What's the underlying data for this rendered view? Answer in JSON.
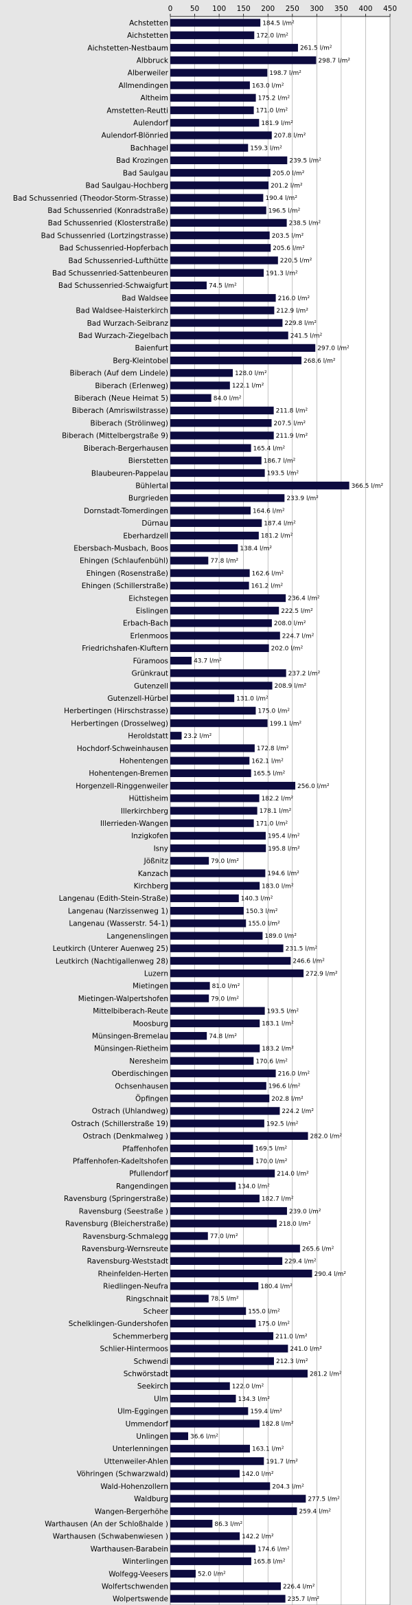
{
  "chart_data": {
    "type": "bar",
    "orientation": "horizontal",
    "title": "",
    "xlabel": "",
    "ylabel": "",
    "xlim": [
      0,
      450
    ],
    "x_ticks": [
      0,
      50,
      100,
      150,
      200,
      250,
      300,
      350,
      400,
      450
    ],
    "grid": "vertical",
    "axis_position": "top",
    "unit_suffix": " l/m²",
    "colors": {
      "bar": "#0d0b3f",
      "background": "#e6e6e6",
      "plot": "#ffffff",
      "grid": "#999999"
    },
    "categories": [
      "Achstetten",
      "Aichstetten",
      "Aichstetten-Nestbaum",
      "Albbruck",
      "Alberweiler",
      "Allmendingen",
      "Altheim",
      "Amstetten-Reutti",
      "Aulendorf",
      "Aulendorf-Blönried",
      "Bachhagel",
      "Bad Krozingen",
      "Bad Saulgau",
      "Bad Saulgau-Hochberg",
      "Bad Schussenried (Theodor-Storm-Strasse)",
      "Bad Schussenried (Konradstraße)",
      "Bad Schussenried (Klosterstraße)",
      "Bad Schussenried (Lortzingstrasse)",
      "Bad Schussenried-Hopferbach",
      "Bad Schussenried-Lufthütte",
      "Bad Schussenried-Sattenbeuren",
      "Bad Schussenried-Schwaigfurt",
      "Bad Waldsee",
      "Bad Waldsee-Haisterkirch",
      "Bad Wurzach-Seibranz",
      "Bad Wurzach-Ziegelbach",
      "Baienfurt",
      "Berg-Kleintobel",
      "Biberach (Auf dem Lindele)",
      "Biberach (Erlenweg)",
      "Biberach (Neue Heimat 5)",
      "Biberach (Amriswilstrasse)",
      "Biberach (Strölinweg)",
      "Biberach (Mittelbergstraße 9)",
      "Biberach-Bergerhausen",
      "Bierstetten",
      "Blaubeuren-Pappelau",
      "Bühlertal",
      "Burgrieden",
      "Dornstadt-Tomerdingen",
      "Dürnau",
      "Eberhardzell",
      "Ebersbach-Musbach, Boos",
      "Ehingen (Schlaufenbühl)",
      "Ehingen (Rosenstraße)",
      "Ehingen (Schillerstraße)",
      "Eichstegen",
      "Eislingen",
      "Erbach-Bach",
      "Erlenmoos",
      "Friedrichshafen-Kluftern",
      "Füramoos",
      "Grünkraut",
      "Gutenzell",
      "Gutenzell-Hürbel",
      "Herbertingen (Hirschstrasse)",
      "Herbertingen (Drosselweg)",
      "Heroldstatt",
      "Hochdorf-Schweinhausen",
      "Hohentengen",
      "Hohentengen-Bremen",
      "Horgenzell-Ringgenweiler",
      "Hüttisheim",
      "Illerkirchberg",
      "Illerrieden-Wangen",
      "Inzigkofen",
      "Isny",
      "Jößnitz",
      "Kanzach",
      "Kirchberg",
      "Langenau (Edith-Stein-Straße)",
      "Langenau (Narzissenweg 1)",
      "Langenau (Wasserstr. 54-1)",
      "Langenenslingen",
      "Leutkirch (Unterer Auenweg 25)",
      "Leutkirch (Nachtigallenweg 28)",
      "Luzern",
      "Mietingen",
      "Mietingen-Walpertshofen",
      "Mittelbiberach-Reute",
      "Moosburg",
      "Münsingen-Bremelau",
      "Münsingen-Rietheim",
      "Neresheim",
      "Oberdischingen",
      "Ochsenhausen",
      "Öpfingen",
      "Ostrach (Uhlandweg)",
      "Ostrach (Schillerstraße 19)",
      "Ostrach (Denkmalweg )",
      "Pfaffenhofen",
      "Pfaffenhofen-Kadeltshofen",
      "Pfullendorf",
      "Rangendingen",
      "Ravensburg (Springerstraße)",
      "Ravensburg (Seestraße )",
      "Ravensburg (Bleicherstraße)",
      "Ravensburg-Schmalegg",
      "Ravensburg-Wernsreute",
      "Ravensburg-Weststadt",
      "Rheinfelden-Herten",
      "Riedlingen-Neufra",
      "Ringschnait",
      "Scheer",
      "Schelklingen-Gundershofen",
      "Schemmerberg",
      "Schlier-Hintermoos",
      "Schwendi",
      "Schwörstadt",
      "Seekirch",
      "Ulm",
      "Ulm-Eggingen",
      "Ummendorf",
      "Unlingen",
      "Unterlenningen",
      "Uttenweiler-Ahlen",
      "Vöhringen (Schwarzwald)",
      "Wald-Hohenzollern",
      "Waldburg",
      "Wangen-Bergerhöhe",
      "Warthausen (An der Schloßhalde )",
      "Warthausen (Schwabenwiesen )",
      "Warthausen-Barabein",
      "Winterlingen",
      "Wolfegg-Veesers",
      "Wolfertschwenden",
      "Wolpertswende"
    ],
    "values": [
      184.5,
      172.0,
      261.5,
      298.7,
      198.7,
      163.0,
      175.2,
      171.0,
      181.9,
      207.8,
      159.3,
      239.5,
      205.0,
      201.2,
      190.4,
      196.5,
      238.5,
      203.5,
      205.6,
      220.5,
      191.3,
      74.5,
      216.0,
      212.9,
      229.8,
      241.5,
      297.0,
      268.6,
      128.0,
      122.1,
      84.0,
      211.8,
      207.5,
      211.9,
      165.4,
      186.7,
      193.5,
      366.5,
      233.9,
      164.6,
      187.4,
      181.2,
      138.4,
      77.8,
      162.6,
      161.2,
      236.4,
      222.5,
      208.0,
      224.7,
      202.0,
      43.7,
      237.2,
      208.9,
      131.0,
      175.0,
      199.1,
      23.2,
      172.8,
      162.1,
      165.5,
      256.0,
      182.2,
      178.1,
      171.0,
      195.4,
      195.8,
      79.0,
      194.6,
      183.0,
      140.3,
      150.3,
      155.0,
      189.0,
      231.5,
      246.6,
      272.9,
      81.0,
      79.0,
      193.5,
      183.1,
      74.8,
      183.2,
      170.6,
      216.0,
      196.6,
      202.8,
      224.2,
      192.5,
      282.0,
      169.5,
      170.0,
      214.0,
      134.0,
      182.7,
      239.0,
      218.0,
      77.0,
      265.6,
      229.4,
      290.4,
      180.4,
      78.5,
      155.0,
      175.0,
      211.0,
      241.0,
      212.3,
      281.2,
      122.0,
      134.3,
      159.4,
      182.8,
      36.6,
      163.1,
      191.7,
      142.0,
      204.3,
      277.5,
      259.4,
      86.3,
      142.2,
      174.6,
      165.8,
      52.0,
      226.4,
      235.7
    ]
  }
}
